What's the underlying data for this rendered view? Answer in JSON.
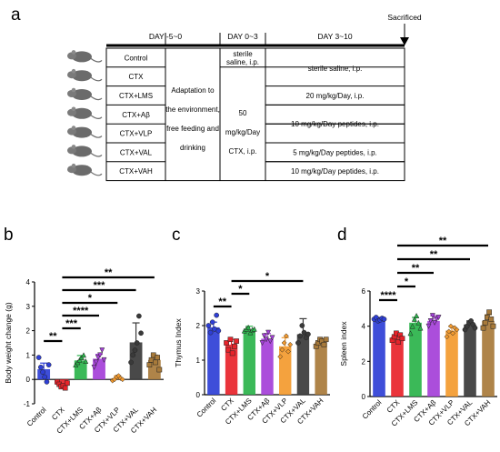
{
  "panel_a": {
    "label": "a",
    "header": {
      "day1": "DAY -5~0",
      "day2": "DAY 0~3",
      "day3": "DAY 3~10",
      "sacrificed": "Sacrificed"
    },
    "groups": [
      "Control",
      "CTX",
      "CTX+LMS",
      "CTX+Aβ",
      "CTX+VLP",
      "CTX+VAL",
      "CTX+VAH"
    ],
    "adaptation_lines": [
      "Adaptation to",
      "the environment,",
      "free feeding and",
      "drinking"
    ],
    "col2_control_lines": [
      "sterile",
      "saline,  i.p."
    ],
    "col2_ctx_lines": [
      "50",
      "mg/kg/Day",
      "CTX,  i.p."
    ],
    "col3_rows": [
      "sterile saline,  i.p.",
      "20 mg/kg/Day,  i.p.",
      "10 mg/kg/Day peptides, i.p.",
      "5 mg/kg/Day peptides, i.p.",
      "10 mg/kg/Day peptides, i.p."
    ]
  },
  "chart_data": [
    {
      "panel": "b",
      "type": "bar",
      "ylabel": "Body weight change (g)",
      "ylim": [
        -1,
        4
      ],
      "yticks": [
        "-1",
        "0",
        "1",
        "2",
        "3",
        "4"
      ],
      "categories": [
        "Control",
        "CTX",
        "CTX+LMS",
        "CTX+Aβ",
        "CTX+VLP",
        "CTX+VAL",
        "CTX+VAH"
      ],
      "colors": [
        "#2e3fd6",
        "#e8232a",
        "#2ab34a",
        "#a43fd8",
        "#f39a2e",
        "#3a3a3a",
        "#a87a3a"
      ],
      "markers": [
        "circle",
        "square",
        "triangle",
        "invtriangle",
        "diamond",
        "circle",
        "square"
      ],
      "values": [
        0.42,
        -0.22,
        0.78,
        0.85,
        0.05,
        1.52,
        0.8
      ],
      "errors": [
        0.25,
        0.12,
        0.2,
        0.18,
        0.1,
        0.8,
        0.2
      ],
      "points": [
        [
          0.9,
          0.5,
          0.3,
          0.1,
          -0.1,
          0.6
        ],
        [
          -0.1,
          -0.2,
          -0.3,
          -0.25,
          -0.35,
          -0.15
        ],
        [
          0.6,
          0.7,
          0.8,
          0.9,
          1.0,
          0.75
        ],
        [
          0.5,
          0.7,
          0.9,
          1.0,
          1.2,
          0.8
        ],
        [
          -0.05,
          0.0,
          0.1,
          0.15,
          0.05,
          0.0
        ],
        [
          0.7,
          1.0,
          1.2,
          1.5,
          2.6,
          1.9
        ],
        [
          0.6,
          0.8,
          1.0,
          0.7,
          0.9,
          0.4
        ]
      ],
      "significance": [
        {
          "from": 0,
          "to": 1,
          "label": "**"
        },
        {
          "from": 1,
          "to": 2,
          "label": "***"
        },
        {
          "from": 1,
          "to": 3,
          "label": "****"
        },
        {
          "from": 1,
          "to": 4,
          "label": "*"
        },
        {
          "from": 1,
          "to": 5,
          "label": "***"
        },
        {
          "from": 1,
          "to": 6,
          "label": "**"
        }
      ],
      "sig_levels": [
        0.95,
        1.75,
        2.45,
        3.1,
        3.8,
        4.45
      ]
    },
    {
      "panel": "c",
      "type": "bar",
      "ylabel": "Thymus Index",
      "ylim": [
        0,
        3
      ],
      "yticks": [
        "0",
        "1",
        "2",
        "3"
      ],
      "categories": [
        "Control",
        "CTX",
        "CTX+LMS",
        "CTX+Aβ",
        "CTX+VLP",
        "CTX+VAL",
        "CTX+VAH"
      ],
      "colors": [
        "#2e3fd6",
        "#e8232a",
        "#2ab34a",
        "#a43fd8",
        "#f39a2e",
        "#3a3a3a",
        "#a87a3a"
      ],
      "markers": [
        "circle",
        "square",
        "triangle",
        "invtriangle",
        "diamond",
        "circle",
        "square"
      ],
      "values": [
        1.95,
        1.45,
        1.88,
        1.62,
        1.4,
        1.75,
        1.52
      ],
      "errors": [
        0.15,
        0.15,
        0.1,
        0.15,
        0.25,
        0.45,
        0.1
      ],
      "points": [
        [
          2.0,
          1.8,
          2.1,
          1.9,
          2.3,
          1.85
        ],
        [
          1.5,
          1.3,
          1.6,
          1.2,
          1.4,
          1.55
        ],
        [
          1.85,
          1.9,
          1.95,
          1.8,
          1.88,
          1.9
        ],
        [
          1.5,
          1.7,
          1.6,
          1.8,
          1.55,
          1.65
        ],
        [
          1.1,
          1.3,
          1.5,
          1.7,
          1.25,
          1.45
        ],
        [
          1.5,
          1.7,
          2.0,
          1.8,
          1.65,
          1.75
        ],
        [
          1.4,
          1.5,
          1.6,
          1.55,
          1.45,
          1.6
        ]
      ],
      "significance": [
        {
          "from": 0,
          "to": 1,
          "label": "**"
        },
        {
          "from": 1,
          "to": 2,
          "label": "*"
        },
        {
          "from": 1,
          "to": 5,
          "label": "*"
        }
      ],
      "sig_levels": [
        2.3,
        2.55,
        2.85
      ]
    },
    {
      "panel": "d",
      "type": "bar",
      "ylabel": "Spleen index",
      "ylim": [
        0,
        6
      ],
      "yticks": [
        "0",
        "2",
        "4",
        "6"
      ],
      "categories": [
        "Control",
        "CTX",
        "CTX+LMS",
        "CTX+Aβ",
        "CTX+VLP",
        "CTX+VAL",
        "CTX+VAH"
      ],
      "colors": [
        "#2e3fd6",
        "#e8232a",
        "#2ab34a",
        "#a43fd8",
        "#f39a2e",
        "#3a3a3a",
        "#a87a3a"
      ],
      "markers": [
        "circle",
        "square",
        "triangle",
        "invtriangle",
        "diamond",
        "circle",
        "square"
      ],
      "values": [
        4.4,
        3.4,
        4.2,
        4.3,
        3.75,
        4.1,
        4.3
      ],
      "errors": [
        0.1,
        0.2,
        0.3,
        0.3,
        0.25,
        0.2,
        0.35
      ],
      "points": [
        [
          4.4,
          4.5,
          4.3,
          4.35,
          4.45,
          4.4
        ],
        [
          3.2,
          3.4,
          3.6,
          3.1,
          3.5,
          3.3
        ],
        [
          3.6,
          4.0,
          4.4,
          4.6,
          4.2,
          3.9
        ],
        [
          4.0,
          4.3,
          4.6,
          4.2,
          4.4,
          4.5
        ],
        [
          3.4,
          3.7,
          4.0,
          3.6,
          3.9,
          3.8
        ],
        [
          3.8,
          4.0,
          4.2,
          4.3,
          4.1,
          3.9
        ],
        [
          3.9,
          4.2,
          4.5,
          4.8,
          4.4,
          4.0
        ]
      ],
      "significance": [
        {
          "from": 1,
          "to": 0,
          "label": "****"
        },
        {
          "from": 1,
          "to": 2,
          "label": "*"
        },
        {
          "from": 1,
          "to": 3,
          "label": "**"
        },
        {
          "from": 1,
          "to": 5,
          "label": "**"
        },
        {
          "from": 1,
          "to": 6,
          "label": "**"
        }
      ],
      "sig_levels": [
        5.35,
        6.25,
        7.15,
        8.05,
        9.05
      ]
    }
  ]
}
